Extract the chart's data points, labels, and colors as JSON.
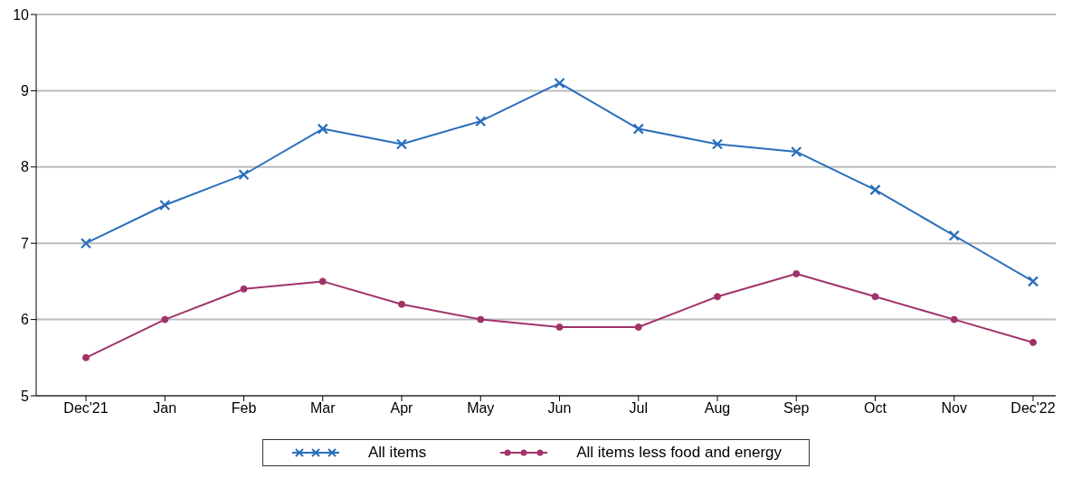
{
  "chart_data": {
    "type": "line",
    "categories": [
      "Dec'21",
      "Jan",
      "Feb",
      "Mar",
      "Apr",
      "May",
      "Jun",
      "Jul",
      "Aug",
      "Sep",
      "Oct",
      "Nov",
      "Dec'22"
    ],
    "series": [
      {
        "name": "All items",
        "color": "#2a6ebb",
        "marker": "cross",
        "values": [
          7.0,
          7.5,
          7.9,
          8.5,
          8.3,
          8.6,
          9.1,
          8.5,
          8.3,
          8.2,
          7.7,
          7.1,
          6.5
        ]
      },
      {
        "name": "All items less food and energy",
        "color": "#a0336a",
        "marker": "circle",
        "values": [
          5.5,
          6.0,
          6.4,
          6.5,
          6.2,
          6.0,
          5.9,
          5.9,
          6.3,
          6.6,
          6.3,
          6.0,
          5.7
        ]
      }
    ],
    "ylim": [
      5,
      10
    ],
    "yticks": [
      5,
      6,
      7,
      8,
      9,
      10
    ],
    "grid": "y",
    "legend": "bottom"
  }
}
